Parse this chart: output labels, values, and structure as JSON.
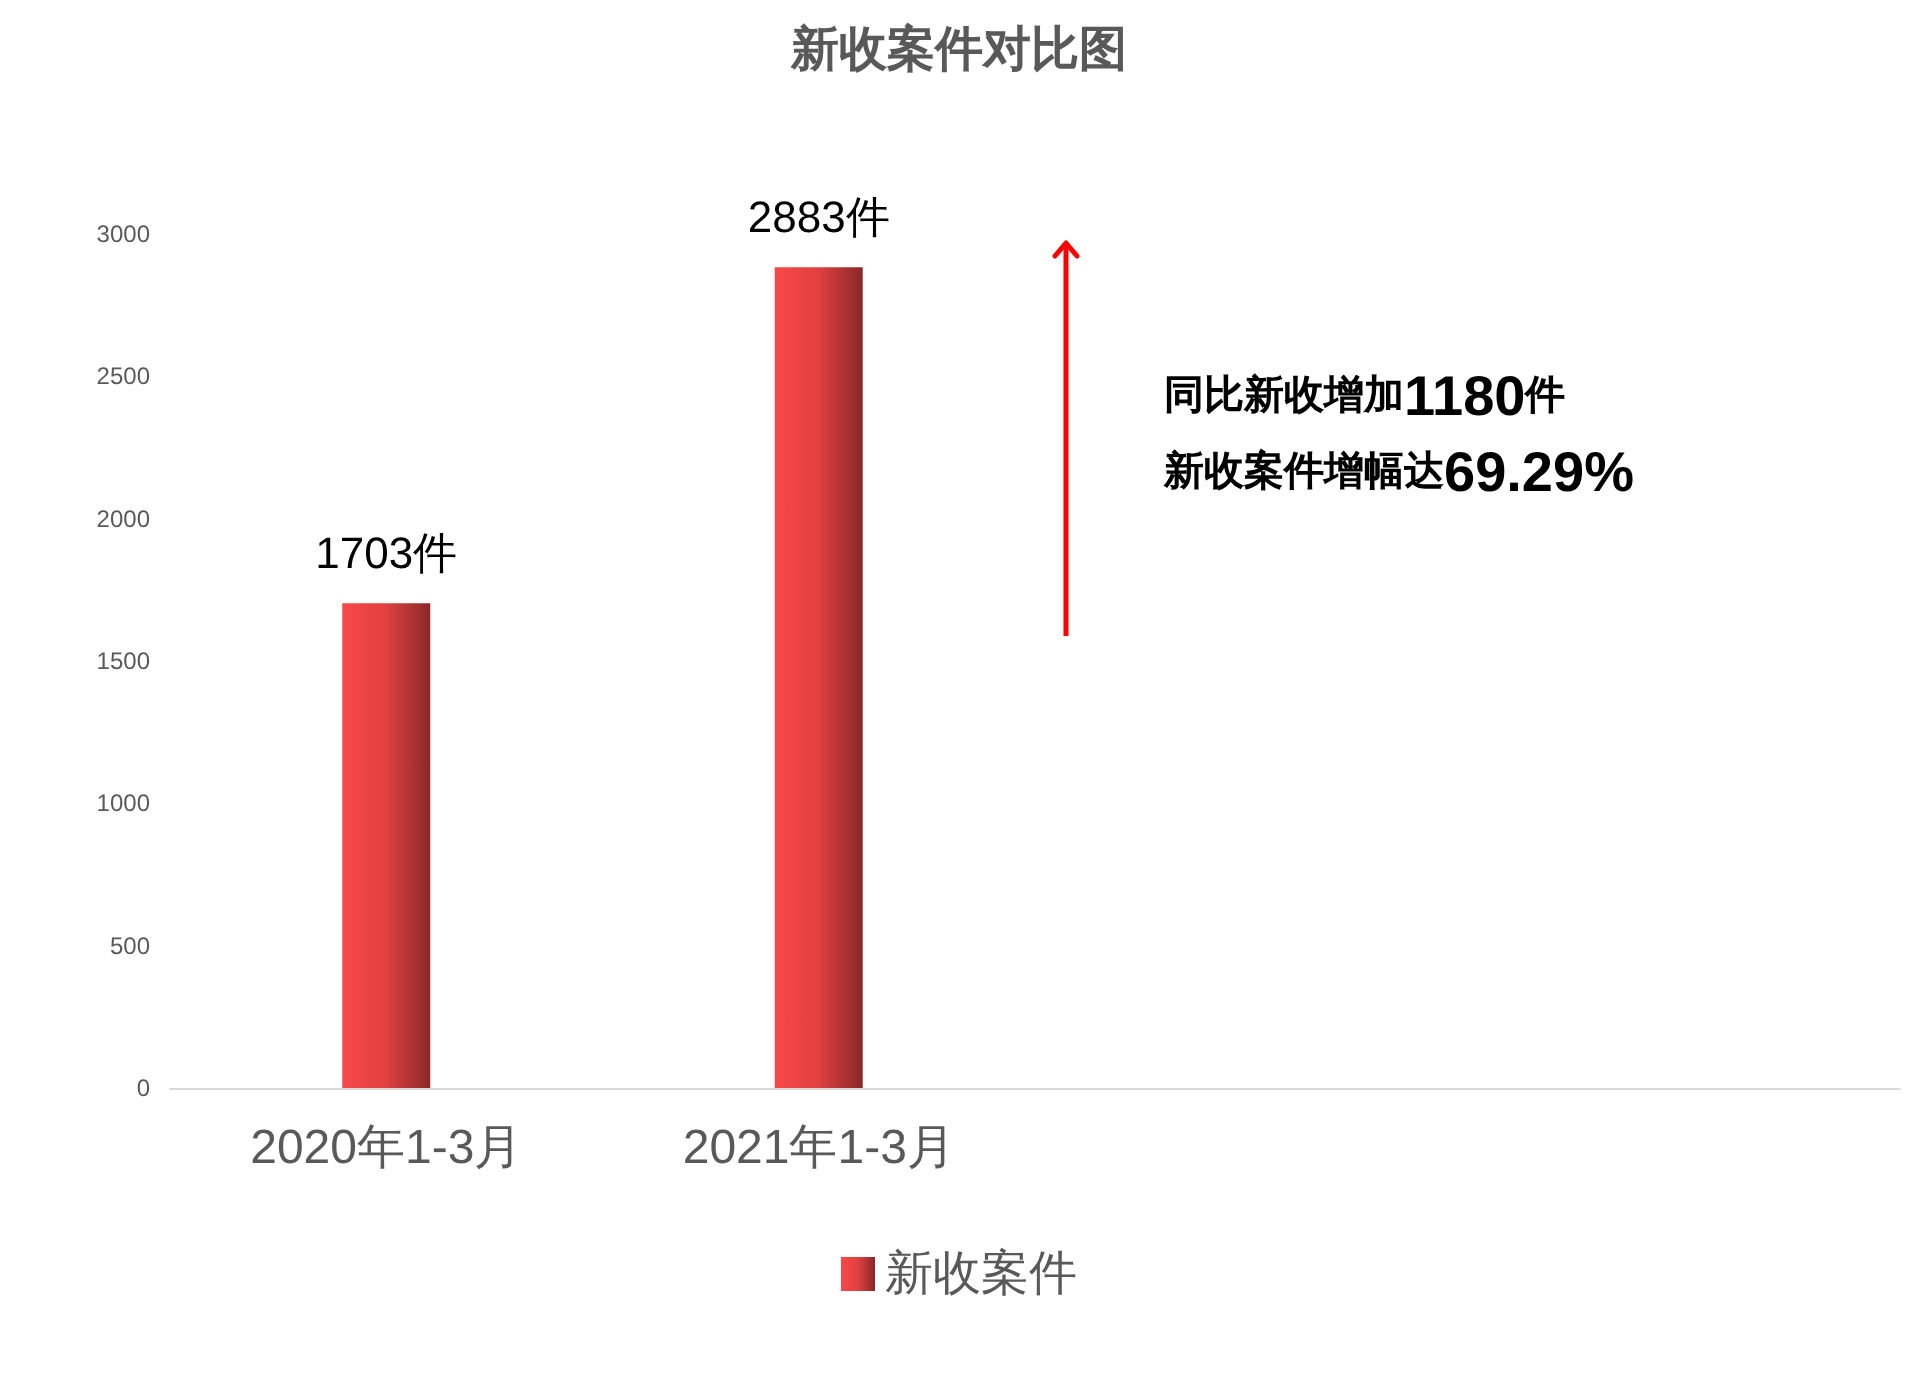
{
  "chart_data": {
    "type": "bar",
    "title": "新收案件对比图",
    "categories": [
      "2020年1-3月",
      "2021年1-3月",
      null,
      null
    ],
    "series": [
      {
        "name": "新收案件",
        "color": "#f94848",
        "values": [
          1703,
          2883,
          null,
          null
        ],
        "value_labels": [
          "1703件",
          "2883件",
          null,
          null
        ]
      }
    ],
    "ylim": [
      0,
      3000
    ],
    "yticks": [
      0,
      500,
      1000,
      1500,
      2000,
      2500,
      3000
    ],
    "legend": "bottom",
    "annotations": [
      "同比新收增加1180件",
      "新收案件增幅达69.29%"
    ]
  }
}
